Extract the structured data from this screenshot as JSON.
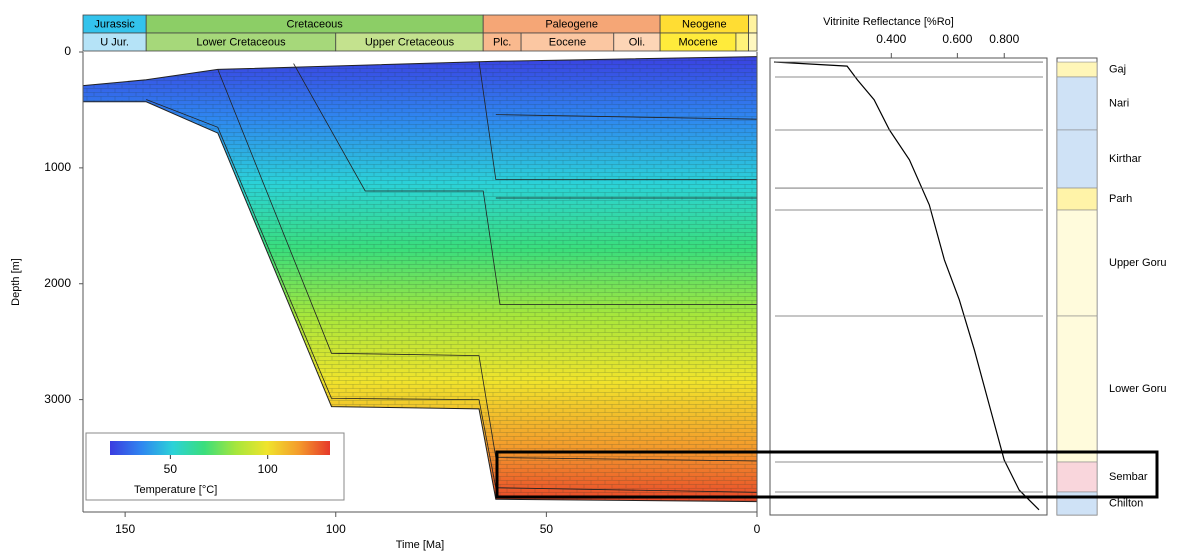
{
  "chart_data": [
    {
      "type": "burial",
      "xlabel": "Time [Ma]",
      "ylabel": "Depth [m]",
      "xlim": [
        160,
        0
      ],
      "xticks": [
        150,
        100,
        50,
        0
      ],
      "ylim": [
        0,
        3970
      ],
      "yticks": [
        0,
        1000,
        2000,
        3000
      ],
      "periods": [
        {
          "name": "Jurassic",
          "start": 160,
          "end": 145,
          "color": "#33c3ec"
        },
        {
          "name": "Cretaceous",
          "start": 145,
          "end": 65,
          "color": "#8cce66"
        },
        {
          "name": "Paleogene",
          "start": 65,
          "end": 23,
          "color": "#f5a676"
        },
        {
          "name": "Neogene",
          "start": 23,
          "end": 2,
          "color": "#ffdd33"
        },
        {
          "name": null,
          "start": 2,
          "end": 0,
          "color": "#fff3a0"
        }
      ],
      "epochs": [
        {
          "name": "U Jur.",
          "start": 160,
          "end": 145,
          "color": "#b5e3f7"
        },
        {
          "name": "Lower Cretaceous",
          "start": 145,
          "end": 100,
          "color": "#a6d87a"
        },
        {
          "name": "Upper Cretaceous",
          "start": 100,
          "end": 65,
          "color": "#c4e28e"
        },
        {
          "name": "Plc.",
          "start": 65,
          "end": 56,
          "color": "#f9b98e"
        },
        {
          "name": "Eocene",
          "start": 56,
          "end": 34,
          "color": "#fbc7a2"
        },
        {
          "name": "Oli.",
          "start": 34,
          "end": 23,
          "color": "#fdd5b6"
        },
        {
          "name": "Mocene",
          "start": 23,
          "end": 5,
          "color": "#ffeb3b"
        },
        {
          "name": null,
          "start": 5,
          "end": 2,
          "color": "#fff27a"
        },
        {
          "name": null,
          "start": 2,
          "end": 0,
          "color": "#fff8c0"
        }
      ],
      "surface": {
        "x": [
          160,
          145,
          128,
          62,
          0
        ],
        "values": [
          290,
          240,
          150,
          80,
          40
        ]
      },
      "basement": {
        "x": [
          160,
          145,
          128,
          101,
          66,
          62,
          0
        ],
        "values": [
          430,
          430,
          700,
          3060,
          3080,
          3860,
          3880
        ]
      },
      "horizons": [
        {
          "x": [
            145,
            128,
            101,
            66,
            62,
            0
          ],
          "values": [
            410,
            650,
            2990,
            3000,
            3760,
            3800
          ]
        },
        {
          "x": [
            128,
            101,
            66,
            62,
            0
          ],
          "values": [
            150,
            2600,
            2620,
            3500,
            3530
          ]
        },
        {
          "x": [
            110,
            93,
            65,
            61,
            0
          ],
          "values": [
            100,
            1200,
            1200,
            2180,
            2180
          ]
        },
        {
          "x": [
            66,
            62,
            0
          ],
          "values": [
            80,
            1100,
            1100
          ]
        },
        {
          "x": [
            62,
            0
          ],
          "values": [
            1260,
            1260
          ]
        },
        {
          "x": [
            62,
            0
          ],
          "values": [
            540,
            580
          ]
        }
      ],
      "colorbar": {
        "label": "Temperature [°C]",
        "lim": [
          19,
          132
        ],
        "ticks": [
          50,
          100
        ],
        "colors": [
          "#3b3ce0",
          "#2f86f0",
          "#2bd2d8",
          "#3ade7c",
          "#a6e63c",
          "#f0e42c",
          "#f49c2c",
          "#e6382a"
        ]
      }
    },
    {
      "type": "line",
      "title": "Vitrinite Reflectance [%Ro]",
      "log_x": true,
      "color": "#000000",
      "xlim": [
        0.19,
        1.04
      ],
      "xticks": [
        {
          "value": 0.4,
          "label": "0.400"
        },
        {
          "value": 0.6,
          "label": "0.600"
        },
        {
          "value": 0.8,
          "label": "0.800"
        }
      ],
      "ylim": [
        0,
        3950
      ],
      "x": [
        0.195,
        0.305,
        0.325,
        0.36,
        0.395,
        0.447,
        0.505,
        0.554,
        0.607,
        0.666,
        0.73,
        0.8,
        0.877,
        0.99
      ],
      "values": [
        35,
        70,
        190,
        360,
        620,
        880,
        1270,
        1745,
        2090,
        2525,
        3000,
        3475,
        3735,
        3905
      ]
    },
    {
      "type": "column",
      "ylim": [
        0,
        3950
      ],
      "categories": [
        "Gaj",
        "Nari",
        "Kirthar",
        "Parh",
        "Upper Goru",
        "Lower Goru",
        "Sembar",
        "Chilton"
      ],
      "tops": [
        35,
        164,
        622,
        1124,
        1314,
        2230,
        3492,
        3751
      ],
      "bases": [
        164,
        622,
        1124,
        1314,
        2230,
        3492,
        3751,
        3950
      ],
      "colors": [
        "#fff6b8",
        "#cfe2f6",
        "#cfe2f6",
        "#fff3a8",
        "#fffbdc",
        "#fffbdc",
        "#f9d6dc",
        "#cfe2f6"
      ]
    }
  ]
}
